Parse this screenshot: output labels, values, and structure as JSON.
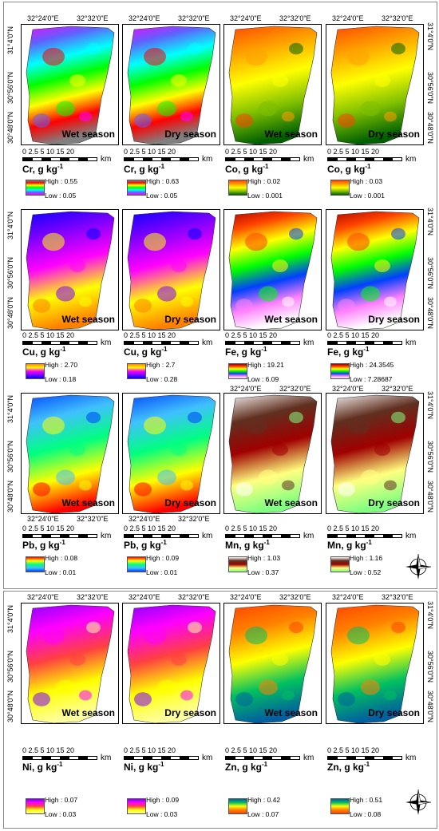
{
  "coords": {
    "lon1": "32°24'0\"E",
    "lon2": "32°32'0\"E",
    "lat1": "31°4'0\"N",
    "lat2": "30°56'0\"N",
    "lat3": "30°48'0\"N"
  },
  "scale": {
    "ticks": "0 2.5 5    10    15    20",
    "unit": "km"
  },
  "seasons": {
    "wet": "Wet season",
    "dry": "Dry season"
  },
  "compass": {
    "n": "N",
    "s": "S",
    "e": "E",
    "w": "W"
  },
  "panels": [
    {
      "element": "Cr",
      "season": "Wet season",
      "high": "High : 0.55",
      "low": "Low : 0.05",
      "ramp": "rainbow_cr"
    },
    {
      "element": "Cr",
      "season": "Dry season",
      "high": "High : 0.63",
      "low": "Low : 0.05",
      "ramp": "rainbow_cr"
    },
    {
      "element": "Co",
      "season": "Wet season",
      "high": "High : 0.02",
      "low": "Low : 0.001",
      "ramp": "co"
    },
    {
      "element": "Co",
      "season": "Dry season",
      "high": "High : 0.03",
      "low": "Low : 0.001",
      "ramp": "co"
    },
    {
      "element": "Cu",
      "season": "Wet season",
      "high": "High : 2.70",
      "low": "Low : 0.18",
      "ramp": "cu"
    },
    {
      "element": "Cu",
      "season": "Dry season",
      "high": "High : 2.7",
      "low": "Low : 0.28",
      "ramp": "cu"
    },
    {
      "element": "Fe",
      "season": "Wet season",
      "high": "High : 19.21",
      "low": "Low : 6.09",
      "ramp": "fe"
    },
    {
      "element": "Fe",
      "season": "Dry season",
      "high": "High : 24.3545",
      "low": "Low : 7.28687",
      "ramp": "fe"
    },
    {
      "element": "Pb",
      "season": "Wet season",
      "high": "High : 0.08",
      "low": "Low : 0.01",
      "ramp": "pb"
    },
    {
      "element": "Pb",
      "season": "Dry season",
      "high": "High : 0.09",
      "low": "Low : 0.01",
      "ramp": "pb"
    },
    {
      "element": "Mn",
      "season": "Wet season",
      "high": "High : 1.03",
      "low": "Low : 0.37",
      "ramp": "mn"
    },
    {
      "element": "Mn",
      "season": "Dry season",
      "high": "High : 1.16",
      "low": "Low : 0.52",
      "ramp": "mn"
    },
    {
      "element": "Ni",
      "season": "Wet season",
      "high": "High : 0.07",
      "low": "Low : 0.03",
      "ramp": "ni"
    },
    {
      "element": "Ni",
      "season": "Dry season",
      "high": "High : 0.09",
      "low": "Low : 0.03",
      "ramp": "ni"
    },
    {
      "element": "Zn",
      "season": "Wet season",
      "high": "High : 0.42",
      "low": "Low : 0.07",
      "ramp": "zn"
    },
    {
      "element": "Zn",
      "season": "Dry season",
      "high": "High : 0.51",
      "low": "Low : 0.08",
      "ramp": "zn"
    }
  ],
  "unit_label": ", g kg",
  "unit_sup": "-1",
  "ramps": {
    "rainbow_cr": [
      "#808080",
      "#ff0000",
      "#ffff00",
      "#00ff00",
      "#00ffff",
      "#6060ff",
      "#ff00ff"
    ],
    "co": [
      "#ff4000",
      "#ffa000",
      "#ffff00",
      "#80c000",
      "#006000"
    ],
    "cu": [
      "#ff8000",
      "#ffff00",
      "#ff00ff",
      "#8000ff",
      "#0000ff"
    ],
    "fe": [
      "#a00000",
      "#ff4000",
      "#ffff00",
      "#00ff00",
      "#0040ff",
      "#ff80ff",
      "#ffffff"
    ],
    "pb": [
      "#ff0000",
      "#ffff00",
      "#00ff80",
      "#40c0ff",
      "#0040ff"
    ],
    "mn": [
      "#ffffff",
      "#603020",
      "#a00000",
      "#ffff80",
      "#80ff80"
    ],
    "ni": [
      "#8000ff",
      "#ff00ff",
      "#ff4040",
      "#ffff00",
      "#ffffa0"
    ],
    "zn": [
      "#0060a0",
      "#00c060",
      "#ffff00",
      "#ff8000",
      "#ff4000"
    ]
  }
}
